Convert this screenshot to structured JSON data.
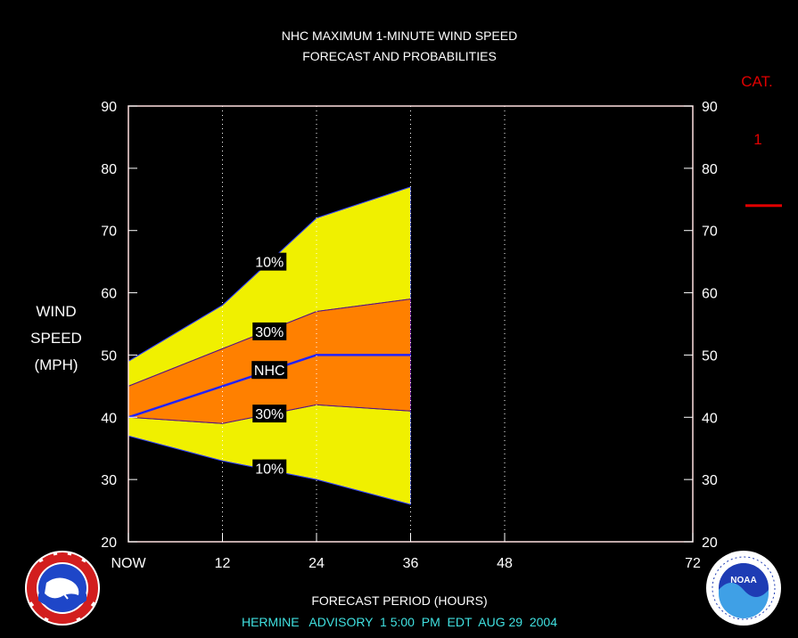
{
  "chart_data": {
    "type": "area",
    "title": "NHC MAXIMUM 1-MINUTE WIND SPEED",
    "subtitle": "FORECAST AND PROBABILITIES",
    "ylabel_lines": [
      "WIND",
      "SPEED",
      "(MPH)"
    ],
    "xlabel": "FORECAST PERIOD (HOURS)",
    "advisory": "HERMINE   ADVISORY  1 5:00  PM  EDT  AUG 29  2004",
    "xlim": [
      0,
      72
    ],
    "ylim": [
      20,
      90
    ],
    "x_ticks": [
      {
        "value": 0,
        "label": "NOW"
      },
      {
        "value": 12,
        "label": "12"
      },
      {
        "value": 24,
        "label": "24"
      },
      {
        "value": 36,
        "label": "36"
      },
      {
        "value": 48,
        "label": "48"
      },
      {
        "value": 72,
        "label": "72"
      }
    ],
    "y_ticks": [
      20,
      30,
      40,
      50,
      60,
      70,
      80,
      90
    ],
    "vertical_gridlines_at": [
      12,
      24,
      36,
      48
    ],
    "x": [
      0,
      12,
      24,
      36
    ],
    "series": [
      {
        "name": "10%",
        "role": "upper",
        "values": [
          49,
          58,
          72,
          77
        ],
        "color": "#F0F000"
      },
      {
        "name": "30%",
        "role": "upper",
        "values": [
          45,
          51,
          57,
          59
        ],
        "color": "#FF8000"
      },
      {
        "name": "NHC",
        "role": "forecast",
        "values": [
          40,
          45,
          50,
          50
        ],
        "color": "#2222FF"
      },
      {
        "name": "30%",
        "role": "lower",
        "values": [
          40,
          39,
          42,
          41
        ],
        "color": "#FF8000"
      },
      {
        "name": "10%",
        "role": "lower",
        "values": [
          37,
          33,
          30,
          26
        ],
        "color": "#F0F000"
      }
    ],
    "band_labels": [
      {
        "text": "10%",
        "x": 18,
        "y": 65
      },
      {
        "text": "30%",
        "x": 18,
        "y": 53.8
      },
      {
        "text": "NHC",
        "x": 18,
        "y": 47.6
      },
      {
        "text": "30%",
        "x": 18,
        "y": 40.6
      },
      {
        "text": "10%",
        "x": 18,
        "y": 31.8
      }
    ],
    "category": {
      "header": "CAT.",
      "level": "1",
      "threshold_mph": 74,
      "color": "#E00000"
    }
  },
  "logos": {
    "left": "national-weather-service-logo",
    "right": "noaa-logo"
  }
}
